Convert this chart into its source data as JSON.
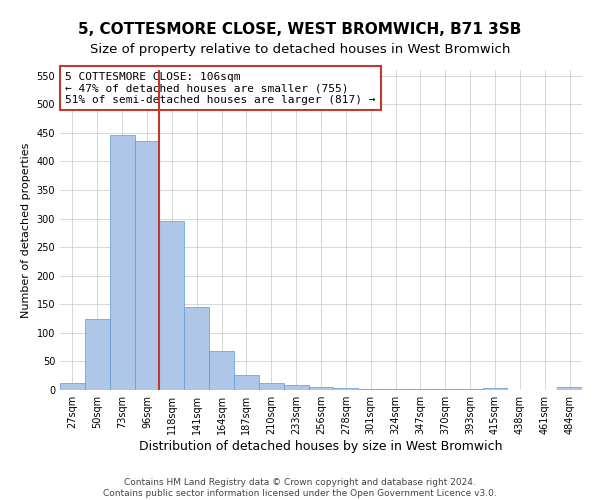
{
  "title": "5, COTTESMORE CLOSE, WEST BROMWICH, B71 3SB",
  "subtitle": "Size of property relative to detached houses in West Bromwich",
  "xlabel": "Distribution of detached houses by size in West Bromwich",
  "ylabel": "Number of detached properties",
  "categories": [
    "27sqm",
    "50sqm",
    "73sqm",
    "96sqm",
    "118sqm",
    "141sqm",
    "164sqm",
    "187sqm",
    "210sqm",
    "233sqm",
    "256sqm",
    "278sqm",
    "301sqm",
    "324sqm",
    "347sqm",
    "370sqm",
    "393sqm",
    "415sqm",
    "438sqm",
    "461sqm",
    "484sqm"
  ],
  "values": [
    12,
    125,
    447,
    435,
    295,
    145,
    68,
    27,
    13,
    8,
    6,
    4,
    2,
    1,
    1,
    1,
    1,
    4,
    0,
    0,
    6
  ],
  "bar_color": "#aec6e8",
  "bar_edge_color": "#5b9bd5",
  "vline_color": "#c0392b",
  "vline_x_index": 3.5,
  "annotation_text": "5 COTTESMORE CLOSE: 106sqm\n← 47% of detached houses are smaller (755)\n51% of semi-detached houses are larger (817) →",
  "annotation_box_color": "#ffffff",
  "annotation_box_edge_color": "#c0392b",
  "ylim": [
    0,
    560
  ],
  "yticks": [
    0,
    50,
    100,
    150,
    200,
    250,
    300,
    350,
    400,
    450,
    500,
    550
  ],
  "background_color": "#ffffff",
  "grid_color": "#c8c8c8",
  "footer_line1": "Contains HM Land Registry data © Crown copyright and database right 2024.",
  "footer_line2": "Contains public sector information licensed under the Open Government Licence v3.0.",
  "title_fontsize": 11,
  "subtitle_fontsize": 9.5,
  "xlabel_fontsize": 9,
  "ylabel_fontsize": 8,
  "tick_fontsize": 7,
  "annotation_fontsize": 8,
  "footer_fontsize": 6.5
}
